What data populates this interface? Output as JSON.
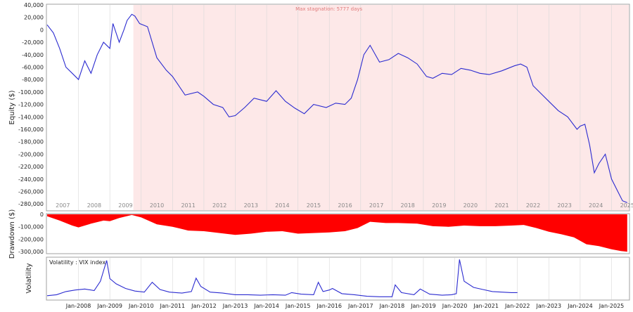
{
  "chart_data": [
    {
      "type": "line",
      "panel": "equity",
      "ylabel": "Equity ($)",
      "ylim": [
        -290000,
        40000
      ],
      "yticks": [
        "40,000",
        "20,000",
        "0",
        "-20,000",
        "-40,000",
        "-60,000",
        "-80,000",
        "-100,000",
        "-120,000",
        "-140,000",
        "-160,000",
        "-180,000",
        "-200,000",
        "-220,000",
        "-240,000",
        "-260,000",
        "-280,000"
      ],
      "ytick_values": [
        40000,
        20000,
        0,
        -20000,
        -40000,
        -60000,
        -80000,
        -100000,
        -120000,
        -140000,
        -160000,
        -180000,
        -200000,
        -220000,
        -240000,
        -260000,
        -280000
      ],
      "year_labels": [
        "2007",
        "2008",
        "2009",
        "2010",
        "2011",
        "2012",
        "2013",
        "2014",
        "2015",
        "2016",
        "2017",
        "2018",
        "2019",
        "2020",
        "2021",
        "2022",
        "2023",
        "2024",
        "2025"
      ],
      "annotation": "Max stagnation: 5777 days",
      "stagnation_start": 2009.75,
      "line_color": "#2b2bd0",
      "stagnation_color": "#fde8e8",
      "x": [
        2007.0,
        2007.2,
        2007.4,
        2007.6,
        2007.8,
        2008.0,
        2008.2,
        2008.4,
        2008.6,
        2008.8,
        2009.0,
        2009.1,
        2009.3,
        2009.45,
        2009.55,
        2009.7,
        2009.8,
        2009.95,
        2010.2,
        2010.5,
        2010.8,
        2011.0,
        2011.4,
        2011.8,
        2012.0,
        2012.3,
        2012.6,
        2012.8,
        2013.0,
        2013.3,
        2013.6,
        2014.0,
        2014.3,
        2014.6,
        2014.9,
        2015.2,
        2015.5,
        2015.9,
        2016.2,
        2016.5,
        2016.7,
        2016.9,
        2017.1,
        2017.3,
        2017.6,
        2017.9,
        2018.2,
        2018.5,
        2018.8,
        2019.1,
        2019.3,
        2019.6,
        2019.9,
        2020.2,
        2020.5,
        2020.8,
        2021.1,
        2021.5,
        2021.9,
        2022.1,
        2022.3,
        2022.5,
        2022.7,
        2023.0,
        2023.3,
        2023.6,
        2023.9,
        2024.0,
        2024.15,
        2024.3,
        2024.45,
        2024.6,
        2024.8,
        2025.0,
        2025.2,
        2025.35,
        2025.5
      ],
      "y": [
        8000,
        -5000,
        -30000,
        -60000,
        -70000,
        -80000,
        -50000,
        -70000,
        -40000,
        -20000,
        -30000,
        10000,
        -20000,
        0,
        15000,
        25000,
        22000,
        10000,
        5000,
        -45000,
        -65000,
        -75000,
        -105000,
        -100000,
        -107000,
        -120000,
        -125000,
        -140000,
        -138000,
        -125000,
        -110000,
        -115000,
        -98000,
        -115000,
        -126000,
        -135000,
        -120000,
        -125000,
        -118000,
        -120000,
        -110000,
        -80000,
        -40000,
        -25000,
        -52000,
        -48000,
        -38000,
        -45000,
        -55000,
        -75000,
        -78000,
        -70000,
        -72000,
        -62000,
        -65000,
        -70000,
        -72000,
        -66000,
        -58000,
        -55000,
        -60000,
        -90000,
        -100000,
        -115000,
        -130000,
        -140000,
        -160000,
        -155000,
        -152000,
        -185000,
        -230000,
        -215000,
        -200000,
        -240000,
        -260000,
        -275000,
        -278000
      ]
    },
    {
      "type": "area",
      "panel": "drawdown",
      "ylabel": "Drawdown ($)",
      "ylim": [
        -310000,
        0
      ],
      "yticks": [
        "0",
        "-100,000",
        "-200,000",
        "-300,000"
      ],
      "ytick_values": [
        0,
        -100000,
        -200000,
        -300000
      ],
      "fill_color": "#ff0000",
      "x": [
        2007.0,
        2007.4,
        2007.8,
        2008.0,
        2008.4,
        2008.8,
        2009.0,
        2009.3,
        2009.7,
        2010.0,
        2010.5,
        2011.0,
        2011.5,
        2012.0,
        2012.5,
        2013.0,
        2013.5,
        2014.0,
        2014.5,
        2015.0,
        2015.5,
        2016.0,
        2016.5,
        2016.9,
        2017.3,
        2017.8,
        2018.2,
        2018.8,
        2019.3,
        2019.8,
        2020.3,
        2020.8,
        2021.3,
        2021.8,
        2022.2,
        2022.6,
        2023.0,
        2023.4,
        2023.8,
        2024.2,
        2024.6,
        2025.0,
        2025.3,
        2025.5
      ],
      "y": [
        -15000,
        -50000,
        -90000,
        -105000,
        -75000,
        -50000,
        -55000,
        -30000,
        -5000,
        -25000,
        -80000,
        -100000,
        -130000,
        -135000,
        -150000,
        -165000,
        -155000,
        -140000,
        -135000,
        -155000,
        -150000,
        -145000,
        -135000,
        -110000,
        -60000,
        -70000,
        -70000,
        -75000,
        -95000,
        -100000,
        -90000,
        -95000,
        -95000,
        -90000,
        -85000,
        -110000,
        -140000,
        -160000,
        -185000,
        -240000,
        -255000,
        -280000,
        -295000,
        -300000
      ]
    },
    {
      "type": "line",
      "panel": "volatility",
      "ylabel": "Volatility",
      "legend": "Volatility : VIX index",
      "line_color": "#2b2bd0",
      "ylim": [
        5,
        85
      ],
      "xticks": [
        "Jan-2008",
        "Jan-2009",
        "Jan-2010",
        "Jan-2011",
        "Jan-2012",
        "Jan-2013",
        "Jan-2014",
        "Jan-2015",
        "Jan-2016",
        "Jan-2017",
        "Jan-2018",
        "Jan-2019",
        "Jan-2020",
        "Jan-2021",
        "Jan-2022",
        "Jan-2023",
        "Jan-2024",
        "Jan-2025"
      ],
      "xtick_values": [
        2008.0,
        2009.0,
        2010.0,
        2011.0,
        2012.0,
        2013.0,
        2014.0,
        2015.0,
        2016.0,
        2017.0,
        2018.0,
        2019.0,
        2020.0,
        2021.0,
        2022.0,
        2023.0,
        2024.0,
        2025.0
      ],
      "x": [
        2007.0,
        2007.3,
        2007.6,
        2007.9,
        2008.2,
        2008.5,
        2008.7,
        2008.8,
        2008.9,
        2009.0,
        2009.2,
        2009.5,
        2009.8,
        2010.1,
        2010.35,
        2010.6,
        2010.9,
        2011.3,
        2011.6,
        2011.75,
        2011.9,
        2012.2,
        2012.6,
        2013.0,
        2013.4,
        2013.8,
        2014.2,
        2014.6,
        2014.8,
        2015.1,
        2015.5,
        2015.65,
        2015.8,
        2016.0,
        2016.1,
        2016.4,
        2016.8,
        2017.2,
        2017.6,
        2018.0,
        2018.1,
        2018.3,
        2018.7,
        2018.9,
        2019.2,
        2019.6,
        2019.9,
        2020.05,
        2020.15,
        2020.3,
        2020.6,
        2020.9,
        2021.2,
        2021.5,
        2021.8,
        2022.0
      ],
      "y": [
        12,
        14,
        20,
        23,
        25,
        22,
        40,
        60,
        80,
        45,
        35,
        26,
        21,
        19,
        38,
        24,
        19,
        17,
        20,
        46,
        30,
        19,
        17,
        14,
        14,
        13,
        14,
        13,
        18,
        15,
        14,
        38,
        20,
        23,
        26,
        16,
        14,
        11,
        10,
        10,
        33,
        18,
        14,
        25,
        15,
        13,
        14,
        16,
        82,
        40,
        28,
        24,
        20,
        19,
        18,
        18
      ]
    }
  ]
}
